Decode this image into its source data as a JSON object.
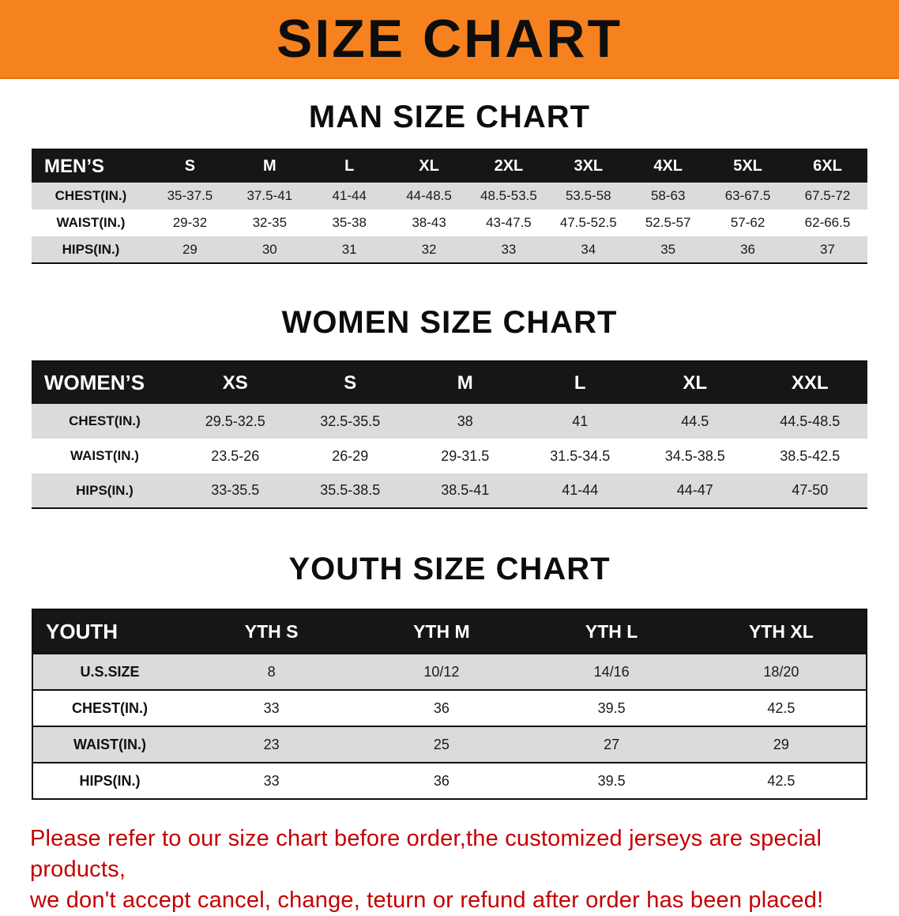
{
  "banner": {
    "title": "SIZE CHART"
  },
  "sections": {
    "men_heading": "MAN SIZE CHART",
    "women_heading": "WOMEN SIZE CHART",
    "youth_heading": "YOUTH SIZE CHART"
  },
  "men_table": {
    "header": [
      "MEN’S",
      "S",
      "M",
      "L",
      "XL",
      "2XL",
      "3XL",
      "4XL",
      "5XL",
      "6XL"
    ],
    "rows": [
      {
        "label": "CHEST(IN.)",
        "values": [
          "35-37.5",
          "37.5-41",
          "41-44",
          "44-48.5",
          "48.5-53.5",
          "53.5-58",
          "58-63",
          "63-67.5",
          "67.5-72"
        ]
      },
      {
        "label": "WAIST(IN.)",
        "values": [
          "29-32",
          "32-35",
          "35-38",
          "38-43",
          "43-47.5",
          "47.5-52.5",
          "52.5-57",
          "57-62",
          "62-66.5"
        ]
      },
      {
        "label": "HIPS(IN.)",
        "values": [
          "29",
          "30",
          "31",
          "32",
          "33",
          "34",
          "35",
          "36",
          "37"
        ]
      }
    ]
  },
  "women_table": {
    "header": [
      "WOMEN’S",
      "XS",
      "S",
      "M",
      "L",
      "XL",
      "XXL"
    ],
    "rows": [
      {
        "label": "CHEST(IN.)",
        "values": [
          "29.5-32.5",
          "32.5-35.5",
          "38",
          "41",
          "44.5",
          "44.5-48.5"
        ]
      },
      {
        "label": "WAIST(IN.)",
        "values": [
          "23.5-26",
          "26-29",
          "29-31.5",
          "31.5-34.5",
          "34.5-38.5",
          "38.5-42.5"
        ]
      },
      {
        "label": "HIPS(IN.)",
        "values": [
          "33-35.5",
          "35.5-38.5",
          "38.5-41",
          "41-44",
          "44-47",
          "47-50"
        ]
      }
    ]
  },
  "youth_table": {
    "header": [
      "YOUTH",
      "YTH S",
      "YTH M",
      "YTH L",
      "YTH XL"
    ],
    "rows": [
      {
        "label": "U.S.SIZE",
        "values": [
          "8",
          "10/12",
          "14/16",
          "18/20"
        ]
      },
      {
        "label": "CHEST(IN.)",
        "values": [
          "33",
          "36",
          "39.5",
          "42.5"
        ]
      },
      {
        "label": "WAIST(IN.)",
        "values": [
          "23",
          "25",
          "27",
          "29"
        ]
      },
      {
        "label": "HIPS(IN.)",
        "values": [
          "33",
          "36",
          "39.5",
          "42.5"
        ]
      }
    ]
  },
  "disclaimer": {
    "line1": "Please refer to our size chart before order,the customized jerseys are special products,",
    "line2": "we don't accept cancel, change, teturn or refund after order has been placed!"
  },
  "colors": {
    "accent_orange": "#F6821F",
    "header_black": "#161616",
    "row_gray": "#DBDBDB",
    "disclaimer_red": "#C40000"
  }
}
